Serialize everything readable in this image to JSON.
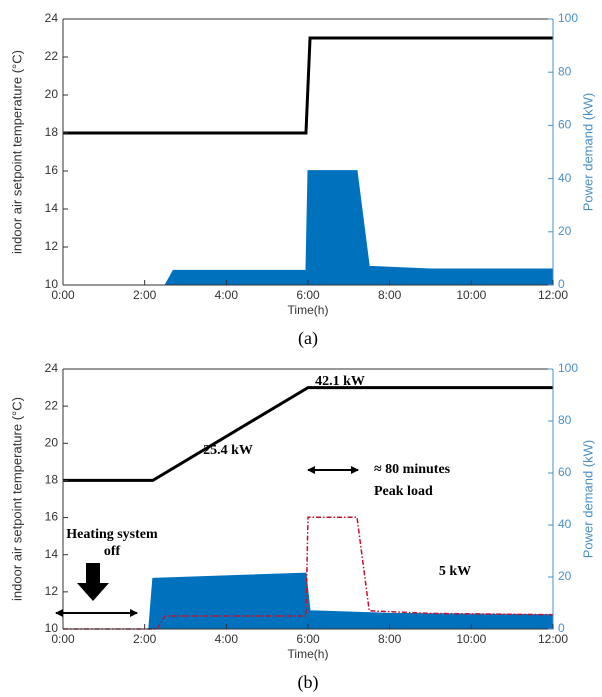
{
  "chart_data": [
    {
      "type": "line",
      "xlabel": "Time(h)",
      "ylabel": "indoor air setpoint temperature (°C)",
      "y2label": "Power demand (kW)",
      "caption": "(a)",
      "xlim": [
        0,
        12
      ],
      "xticks": [
        {
          "value": 0,
          "label": "0:00"
        },
        {
          "value": 2,
          "label": "2:00"
        },
        {
          "value": 4,
          "label": "4:00"
        },
        {
          "value": 6,
          "label": "6:00"
        },
        {
          "value": 8,
          "label": "8:00"
        },
        {
          "value": 10,
          "label": "10:00"
        },
        {
          "value": 12,
          "label": "12:00"
        }
      ],
      "ylim": [
        10,
        24
      ],
      "yticks": [
        10,
        12,
        14,
        16,
        18,
        20,
        22,
        24
      ],
      "y2lim": [
        0,
        100
      ],
      "y2ticks": [
        0,
        20,
        40,
        60,
        80,
        100
      ],
      "y2color": "#4a90c8",
      "series": [
        {
          "style": "area",
          "axis": "y2",
          "color": "#0072bd",
          "x": [
            0,
            2.5,
            2.7,
            5.95,
            6.0,
            7.2,
            7.5,
            9,
            12
          ],
          "values": [
            0,
            0,
            5.5,
            5.5,
            43,
            43,
            7,
            6,
            6
          ]
        },
        {
          "style": "line",
          "color": "#000000",
          "x": [
            0,
            5.95,
            6.05,
            12
          ],
          "values": [
            18,
            18,
            23,
            23
          ]
        }
      ]
    },
    {
      "type": "line",
      "xlabel": "Time(h)",
      "ylabel": "indoor air setpoint temperature (°C)",
      "y2label": "Power demand (kW)",
      "caption": "(b)",
      "xlim": [
        0,
        12
      ],
      "xticks": [
        {
          "value": 0,
          "label": "0:00"
        },
        {
          "value": 2,
          "label": "2:00"
        },
        {
          "value": 4,
          "label": "4:00"
        },
        {
          "value": 6,
          "label": "6:00"
        },
        {
          "value": 8,
          "label": "8:00"
        },
        {
          "value": 10,
          "label": "10:00"
        },
        {
          "value": 12,
          "label": "12:00"
        }
      ],
      "ylim": [
        10,
        24
      ],
      "yticks": [
        10,
        12,
        14,
        16,
        18,
        20,
        22,
        24
      ],
      "y2lim": [
        0,
        100
      ],
      "y2ticks": [
        0,
        20,
        40,
        60,
        80,
        100
      ],
      "y2color": "#4a90c8",
      "series": [
        {
          "style": "area",
          "axis": "y2",
          "color": "#0072bd",
          "x": [
            0,
            2.1,
            2.2,
            5.95,
            6.05,
            8,
            12
          ],
          "values": [
            0,
            0,
            19.5,
            21.5,
            7,
            6,
            5.5
          ]
        },
        {
          "style": "dashed",
          "axis": "y2",
          "color": "#c8102e",
          "x": [
            0,
            2.3,
            2.5,
            5.95,
            6.0,
            7.2,
            7.5,
            9,
            12
          ],
          "values": [
            0,
            0,
            5,
            5,
            43,
            43,
            7,
            6,
            5.5
          ]
        },
        {
          "style": "line",
          "color": "#000000",
          "x": [
            0,
            2.2,
            6,
            12
          ],
          "values": [
            18,
            18,
            23,
            23
          ]
        }
      ],
      "annotations": [
        "42.1 kW",
        "25.4 kW",
        "≈ 80 minutes",
        "Peak load",
        "5 kW",
        "Heating system",
        "off"
      ]
    }
  ]
}
